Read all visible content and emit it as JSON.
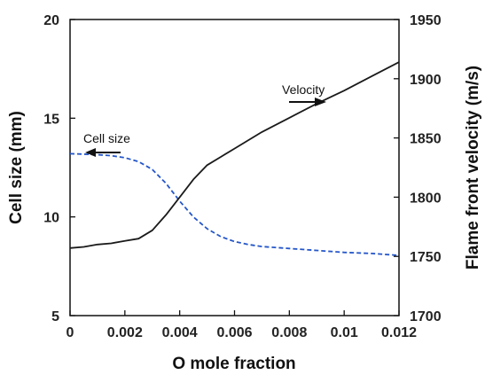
{
  "chart_data": {
    "type": "line",
    "xlabel": "O mole fraction",
    "ylabel": "Cell size (mm)",
    "y2label": "Flame front velocity (m/s)",
    "xlim": [
      0,
      0.012
    ],
    "ylim": [
      5,
      20
    ],
    "y2lim": [
      1700,
      1950
    ],
    "x_ticks": [
      "0",
      "0.002",
      "0.004",
      "0.006",
      "0.008",
      "0.01",
      "0.012"
    ],
    "y_ticks": [
      "5",
      "10",
      "15",
      "20"
    ],
    "y2_ticks": [
      "1700",
      "1750",
      "1800",
      "1850",
      "1900",
      "1950"
    ],
    "grid": false,
    "series": [
      {
        "name": "Cell size",
        "axis": "left",
        "style": "dashed",
        "color": "#2456c9",
        "x": [
          0,
          0.0005,
          0.001,
          0.0015,
          0.002,
          0.0025,
          0.003,
          0.0035,
          0.004,
          0.0045,
          0.005,
          0.0055,
          0.006,
          0.0065,
          0.007,
          0.008,
          0.009,
          0.01,
          0.011,
          0.012
        ],
        "values": [
          13.2,
          13.18,
          13.15,
          13.1,
          13.0,
          12.8,
          12.4,
          11.7,
          10.8,
          10.0,
          9.4,
          9.0,
          8.75,
          8.6,
          8.5,
          8.4,
          8.3,
          8.2,
          8.15,
          8.05
        ]
      },
      {
        "name": "Velocity",
        "axis": "right",
        "style": "solid",
        "color": "#1a1a1a",
        "x": [
          0,
          0.0005,
          0.001,
          0.0015,
          0.002,
          0.0025,
          0.003,
          0.0035,
          0.004,
          0.0045,
          0.005,
          0.0055,
          0.006,
          0.007,
          0.008,
          0.009,
          0.01,
          0.011,
          0.012
        ],
        "values": [
          1757,
          1758,
          1760,
          1761,
          1763,
          1765,
          1772,
          1785,
          1800,
          1815,
          1827,
          1834,
          1841,
          1855,
          1867,
          1879,
          1890,
          1902,
          1914
        ]
      }
    ],
    "annotations": [
      {
        "text": "Cell size",
        "arrow": "left"
      },
      {
        "text": "Velocity",
        "arrow": "right"
      }
    ]
  }
}
